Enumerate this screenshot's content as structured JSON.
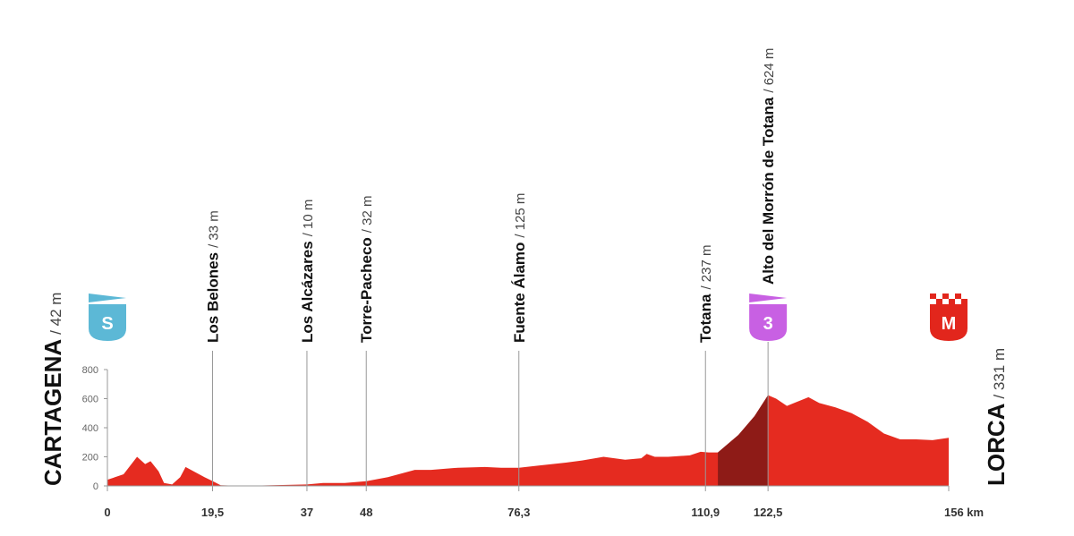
{
  "chart_data": {
    "type": "area",
    "color": "#e52b20",
    "x": [
      0,
      3,
      5.5,
      7,
      8,
      9.5,
      10.5,
      12,
      13.5,
      14.5,
      16,
      18,
      19.5,
      21,
      25,
      37,
      40,
      44,
      48,
      52,
      55,
      57,
      60,
      65,
      70,
      73,
      76.3,
      80,
      85,
      88,
      92,
      94,
      96,
      99,
      100,
      101.5,
      104,
      108,
      110,
      111.5,
      113.2,
      117,
      120,
      122.5,
      124,
      126,
      128,
      130,
      132,
      135,
      138,
      141,
      144,
      147,
      150,
      153,
      156
    ],
    "values": [
      42,
      80,
      200,
      150,
      170,
      100,
      20,
      10,
      60,
      130,
      100,
      60,
      33,
      5,
      0,
      10,
      20,
      20,
      32,
      60,
      90,
      110,
      110,
      125,
      130,
      125,
      125,
      140,
      160,
      175,
      200,
      190,
      180,
      190,
      220,
      200,
      200,
      210,
      235,
      230,
      230,
      350,
      480,
      624,
      600,
      550,
      580,
      610,
      570,
      540,
      500,
      440,
      360,
      320,
      320,
      315,
      331
    ],
    "highlight": {
      "from": 113.2,
      "to": 122.5,
      "color": "#8e1b17"
    },
    "xlim": [
      0,
      156
    ],
    "ylim": [
      0,
      800
    ],
    "xticks": [
      0,
      {
        "value": 19.5,
        "label": "19,5"
      },
      37,
      48,
      {
        "value": 76.3,
        "label": "76,3"
      },
      {
        "value": 110.9,
        "label": "110,9"
      },
      {
        "value": 122.5,
        "label": "122,5"
      },
      {
        "value": 156,
        "label": "156 km"
      }
    ],
    "yticks": [
      0,
      200,
      400,
      600,
      800
    ],
    "start": {
      "name": "CARTAGENA",
      "elevation": "/ 42 m"
    },
    "finish": {
      "name": "LORCA",
      "elevation": "/ 331 m"
    },
    "waypoints": [
      {
        "km": 19.5,
        "name": "Los Belones",
        "elevation": "/ 33 m"
      },
      {
        "km": 37,
        "name": "Los Alcázares",
        "elevation": "/ 10 m"
      },
      {
        "km": 48,
        "name": "Torre-Pacheco",
        "elevation": "/ 32 m"
      },
      {
        "km": 76.3,
        "name": "Fuente Álamo",
        "elevation": "/ 125 m"
      },
      {
        "km": 110.9,
        "name": "Totana",
        "elevation": "/ 237 m"
      },
      {
        "km": 122.5,
        "name": "Alto del Morrón de Totana",
        "elevation": "/ 624 m"
      }
    ],
    "markers": [
      {
        "km": 0,
        "label": "S",
        "color": "#5cb8d6",
        "flag": "pennant"
      },
      {
        "km": 122.5,
        "label": "3",
        "color": "#c860e3",
        "flag": "pennant"
      },
      {
        "km": 156,
        "label": "M",
        "color": "#e2261c",
        "flag": "checkered"
      }
    ]
  }
}
